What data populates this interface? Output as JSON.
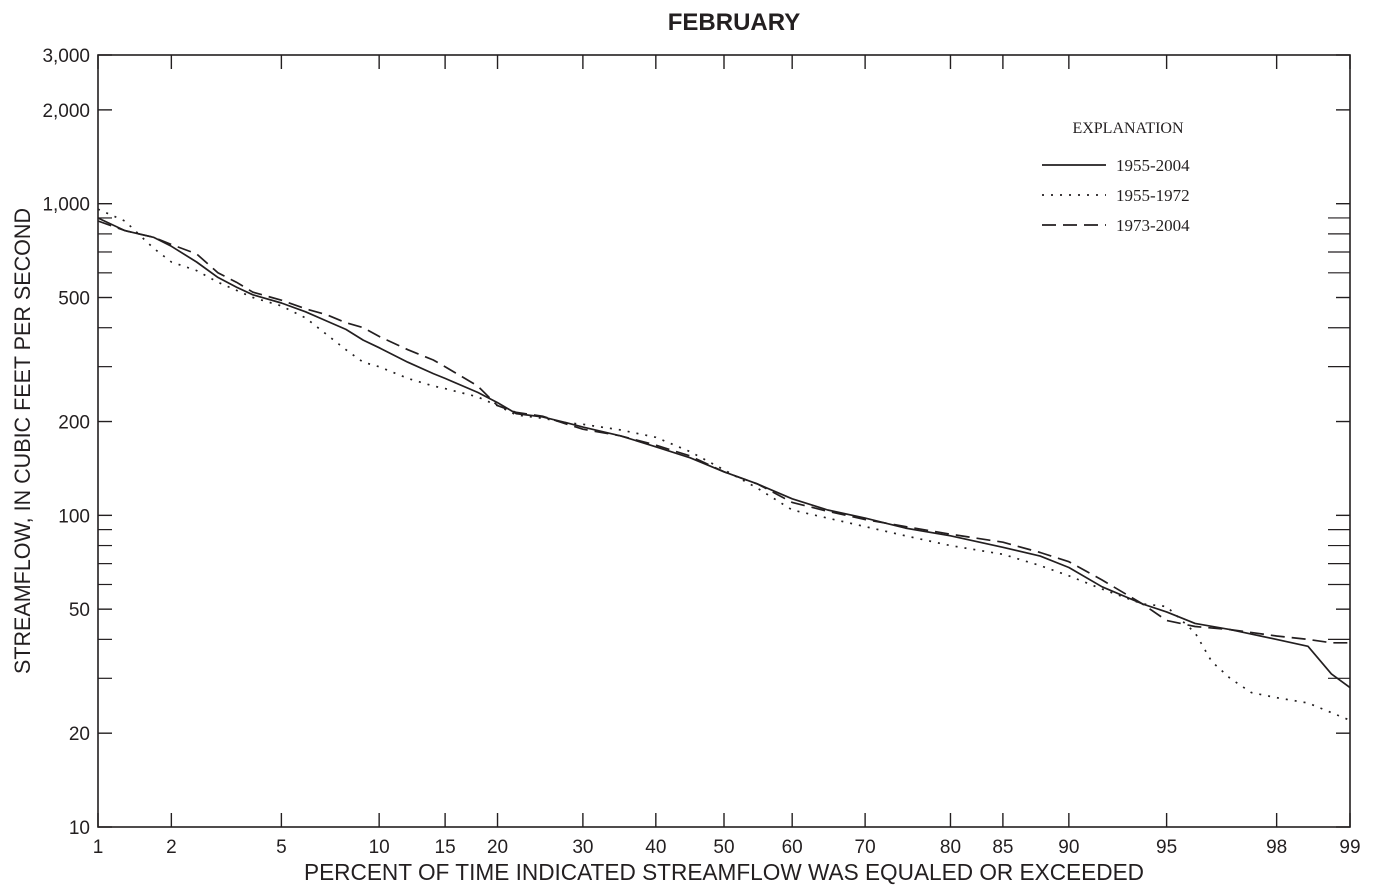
{
  "chart_data": {
    "type": "line",
    "title": "FEBRUARY",
    "xlabel": "PERCENT OF TIME INDICATED STREAMFLOW WAS EQUALED OR EXCEEDED",
    "ylabel": "STREAMFLOW, IN CUBIC FEET PER SECOND",
    "x_scale": "normal-probability",
    "y_scale": "log",
    "xlim": [
      1,
      99
    ],
    "ylim": [
      10,
      3000
    ],
    "x_ticks": [
      1,
      2,
      5,
      10,
      15,
      20,
      30,
      40,
      50,
      60,
      70,
      80,
      85,
      90,
      95,
      98,
      99
    ],
    "x_tick_labels": [
      "1",
      "2",
      "5",
      "10",
      "15",
      "20",
      "30",
      "40",
      "50",
      "60",
      "70",
      "80",
      "85",
      "90",
      "95",
      "98",
      "99"
    ],
    "y_ticks": [
      10,
      20,
      50,
      100,
      200,
      500,
      1000,
      2000,
      3000
    ],
    "y_tick_labels": [
      "10",
      "20",
      "50",
      "100",
      "200",
      "500",
      "1,000",
      "2,000",
      "3,000"
    ],
    "y_minor_ticks": [
      30,
      40,
      60,
      70,
      80,
      90,
      300,
      400,
      600,
      700,
      800,
      900
    ],
    "grid": false,
    "legend": {
      "title": "EXPLANATION",
      "position": "top-right",
      "entries": [
        {
          "label": "1955-2004",
          "style": "solid"
        },
        {
          "label": "1955-1972",
          "style": "dotted"
        },
        {
          "label": "1973-2004",
          "style": "dashed"
        }
      ]
    },
    "series": [
      {
        "name": "1955-2004",
        "style": "solid",
        "x": [
          1,
          1.3,
          1.7,
          2,
          2.5,
          3,
          3.5,
          4,
          5,
          6,
          7,
          8,
          9,
          10,
          12,
          14,
          15,
          18,
          20,
          22,
          25,
          28,
          30,
          35,
          40,
          45,
          50,
          55,
          60,
          65,
          70,
          75,
          80,
          85,
          88,
          90,
          92,
          94,
          95,
          96,
          97,
          98,
          98.5,
          98.8,
          99
        ],
        "y": [
          900,
          820,
          780,
          730,
          650,
          580,
          540,
          510,
          480,
          450,
          420,
          395,
          365,
          345,
          310,
          285,
          275,
          248,
          230,
          212,
          207,
          198,
          192,
          180,
          166,
          153,
          138,
          126,
          113,
          104,
          98,
          91,
          86,
          79,
          74,
          68,
          59,
          52,
          49,
          45,
          43,
          40,
          38,
          31,
          28
        ]
      },
      {
        "name": "1955-1972",
        "style": "dotted",
        "x": [
          1,
          1.3,
          1.7,
          2,
          2.5,
          3,
          4,
          5,
          6,
          7,
          8,
          9,
          10,
          12,
          14,
          15,
          18,
          20,
          22,
          25,
          28,
          30,
          35,
          40,
          45,
          50,
          55,
          60,
          65,
          70,
          75,
          80,
          85,
          88,
          90,
          92,
          94,
          95,
          96,
          96.5,
          97,
          97.5,
          98,
          98.5,
          99
        ],
        "y": [
          960,
          880,
          720,
          650,
          610,
          560,
          500,
          470,
          430,
          380,
          340,
          310,
          300,
          275,
          260,
          255,
          240,
          225,
          210,
          205,
          198,
          196,
          188,
          178,
          160,
          140,
          122,
          104,
          98,
          92,
          86,
          80,
          75,
          69,
          64,
          58,
          52,
          51,
          42,
          34,
          30,
          27,
          26,
          25,
          22
        ]
      },
      {
        "name": "1973-2004",
        "style": "dashed",
        "x": [
          1,
          1.3,
          1.7,
          2,
          2.5,
          3,
          3.5,
          4,
          5,
          6,
          7,
          8,
          9,
          10,
          12,
          14,
          15,
          18,
          20,
          22,
          25,
          28,
          30,
          35,
          40,
          45,
          50,
          55,
          60,
          65,
          70,
          75,
          80,
          85,
          88,
          90,
          92,
          94,
          95,
          96,
          97,
          98,
          98.5,
          98.8,
          99
        ],
        "y": [
          880,
          820,
          780,
          740,
          690,
          600,
          560,
          520,
          490,
          460,
          440,
          415,
          400,
          375,
          340,
          315,
          300,
          260,
          225,
          214,
          208,
          196,
          189,
          180,
          168,
          155,
          138,
          126,
          110,
          103,
          97,
          92,
          87,
          82,
          76,
          71,
          62,
          52,
          46,
          44,
          43,
          41,
          40,
          39,
          39
        ]
      }
    ]
  }
}
